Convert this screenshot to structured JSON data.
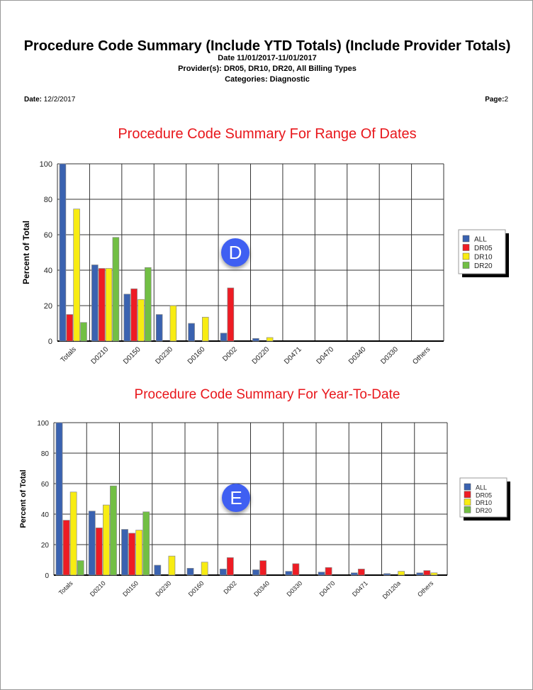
{
  "header": {
    "title": "Procedure Code Summary (Include YTD Totals) (Include Provider Totals)",
    "date_range": "Date 11/01/2017-11/01/2017",
    "providers": "Provider(s): DR05, DR10, DR20, All Billing Types",
    "categories": "Categories: Diagnostic",
    "date_label": "Date:",
    "date_value": "12/2/2017",
    "page_label": "Page:",
    "page_value": "2"
  },
  "markers": {
    "d": "D",
    "e": "E"
  },
  "colors": {
    "ALL": "#3a62b0",
    "DR05": "#ee1c24",
    "DR10": "#f8ec12",
    "DR20": "#72bf44"
  },
  "chart_data": [
    {
      "type": "bar",
      "title": "Procedure Code Summary For Range Of Dates",
      "ylabel": "Percent of Total",
      "ylim": [
        0,
        100
      ],
      "yticks": [
        0,
        20,
        40,
        60,
        80,
        100
      ],
      "grid": true,
      "legend": "right",
      "categories": [
        "Totals",
        "D0210",
        "D0150",
        "D0230",
        "D0160",
        "D002",
        "D0220",
        "D0471",
        "D0470",
        "D0340",
        "D0330",
        "Others"
      ],
      "series": [
        {
          "name": "ALL",
          "values": [
            100,
            43,
            26.5,
            15,
            10,
            4.5,
            1.5,
            0,
            0,
            0,
            0,
            0
          ]
        },
        {
          "name": "DR05",
          "values": [
            15,
            41,
            29.5,
            0,
            0,
            30,
            0,
            0,
            0,
            0,
            0,
            0
          ]
        },
        {
          "name": "DR10",
          "values": [
            74.5,
            41,
            23.5,
            20,
            13.5,
            0,
            2,
            0,
            0,
            0,
            0,
            0
          ]
        },
        {
          "name": "DR20",
          "values": [
            10.5,
            58.5,
            41.5,
            0,
            0,
            0,
            0,
            0,
            0,
            0,
            0,
            0
          ]
        }
      ]
    },
    {
      "type": "bar",
      "title": "Procedure Code Summary For Year-To-Date",
      "ylabel": "Percent of Total",
      "ylim": [
        0,
        100
      ],
      "yticks": [
        0,
        20,
        40,
        60,
        80,
        100
      ],
      "grid": true,
      "legend": "right",
      "categories": [
        "Totals",
        "D0210",
        "D0150",
        "D0230",
        "D0160",
        "D002",
        "D0340",
        "D0330",
        "D0470",
        "D0471",
        "D0120a",
        "Others"
      ],
      "series": [
        {
          "name": "ALL",
          "values": [
            100,
            42,
            30,
            6.5,
            4.5,
            4,
            3.5,
            2.5,
            2,
            1.5,
            1,
            1.5
          ]
        },
        {
          "name": "DR05",
          "values": [
            36,
            31,
            27.5,
            0,
            0,
            11.5,
            9.5,
            7.5,
            5,
            4,
            0,
            3
          ]
        },
        {
          "name": "DR10",
          "values": [
            54.5,
            46,
            29.5,
            12.5,
            8.5,
            0,
            0,
            0,
            0,
            0,
            2.5,
            1.5
          ]
        },
        {
          "name": "DR20",
          "values": [
            9.5,
            58.5,
            41.5,
            0,
            0,
            0,
            0,
            0,
            0,
            0,
            0,
            0
          ]
        }
      ]
    }
  ]
}
